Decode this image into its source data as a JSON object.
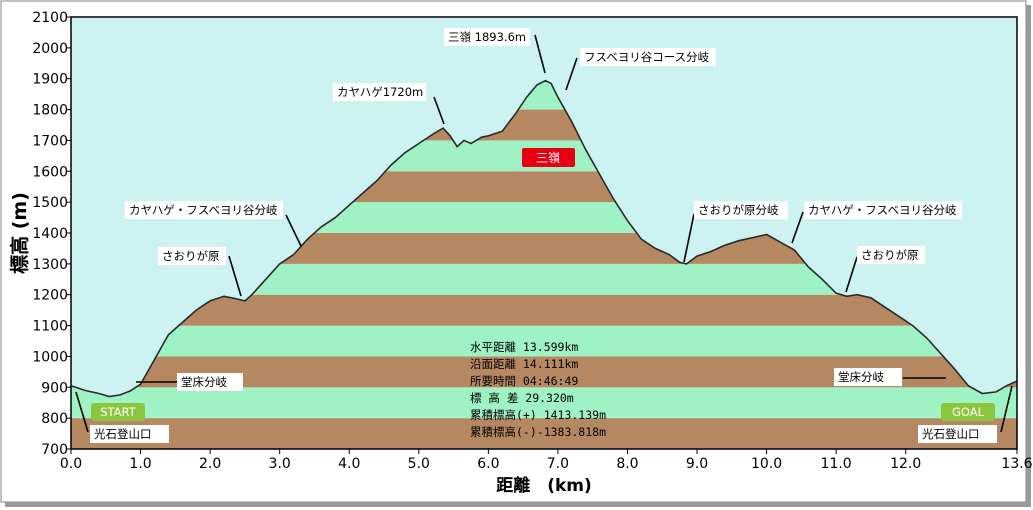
{
  "colors": {
    "background": "#ffffff",
    "plot_background": "#ccf2f2",
    "band_light": "#9ef2c4",
    "band_dark": "#b68862",
    "summit_label_fill": "#e60012",
    "start_goal_fill": "#8cc63f"
  },
  "chart_data": {
    "type": "area",
    "title": "",
    "xlabel": "距離　(km)",
    "ylabel": "標高 (m)",
    "xlim": [
      0.0,
      13.6
    ],
    "ylim": [
      700,
      2100
    ],
    "xticks": [
      "0.0",
      "1.0",
      "2.0",
      "3.0",
      "4.0",
      "5.0",
      "6.0",
      "7.0",
      "8.0",
      "9.0",
      "10.0",
      "11.0",
      "12.0",
      "13.6"
    ],
    "yticks": [
      "700",
      "800",
      "900",
      "1000",
      "1100",
      "1200",
      "1300",
      "1400",
      "1500",
      "1600",
      "1700",
      "1800",
      "1900",
      "2000",
      "2100"
    ],
    "grid": false,
    "legend": "none",
    "profile": {
      "x": [
        0.0,
        0.2,
        0.4,
        0.55,
        0.7,
        0.85,
        1.0,
        1.2,
        1.4,
        1.6,
        1.8,
        2.0,
        2.2,
        2.35,
        2.5,
        2.6,
        2.8,
        3.0,
        3.2,
        3.4,
        3.6,
        3.8,
        4.0,
        4.2,
        4.4,
        4.6,
        4.8,
        5.0,
        5.2,
        5.35,
        5.45,
        5.55,
        5.65,
        5.75,
        5.9,
        6.0,
        6.2,
        6.4,
        6.55,
        6.7,
        6.82,
        6.9,
        7.0,
        7.2,
        7.4,
        7.6,
        7.8,
        8.0,
        8.2,
        8.4,
        8.6,
        8.75,
        8.85,
        9.0,
        9.2,
        9.4,
        9.6,
        9.8,
        10.0,
        10.2,
        10.4,
        10.6,
        10.8,
        11.0,
        11.15,
        11.3,
        11.5,
        11.7,
        11.9,
        12.1,
        12.3,
        12.5,
        12.7,
        12.9,
        13.1,
        13.3,
        13.45,
        13.6
      ],
      "y": [
        905,
        890,
        880,
        870,
        875,
        888,
        910,
        990,
        1070,
        1110,
        1150,
        1180,
        1195,
        1188,
        1180,
        1200,
        1250,
        1300,
        1330,
        1380,
        1420,
        1450,
        1490,
        1530,
        1570,
        1620,
        1660,
        1690,
        1720,
        1740,
        1715,
        1680,
        1700,
        1690,
        1710,
        1715,
        1730,
        1790,
        1840,
        1880,
        1893.6,
        1885,
        1840,
        1760,
        1670,
        1590,
        1510,
        1440,
        1380,
        1350,
        1330,
        1305,
        1300,
        1325,
        1340,
        1360,
        1375,
        1385,
        1395,
        1370,
        1345,
        1290,
        1250,
        1205,
        1195,
        1200,
        1190,
        1160,
        1130,
        1100,
        1060,
        1010,
        960,
        905,
        880,
        885,
        905,
        920
      ]
    },
    "annotations": [
      {
        "text": "三嶺 1893.6m"
      },
      {
        "text": "フスベヨリ谷コース分岐"
      },
      {
        "text": "カヤハゲ1720m"
      },
      {
        "text": "カヤハゲ・フスベヨリ谷分岐"
      },
      {
        "text": "さおりが原"
      },
      {
        "text": "堂床分岐"
      },
      {
        "text": "光石登山口"
      },
      {
        "text": "さおりが原分岐"
      },
      {
        "text": "カヤハゲ・フスベヨリ谷分岐"
      },
      {
        "text": "さおりが原"
      },
      {
        "text": "堂床分岐"
      },
      {
        "text": "光石登山口"
      }
    ],
    "summit_label": "三嶺",
    "start_label": "START",
    "goal_label": "GOAL",
    "stats": [
      "水平距離 13.599km",
      "沿面距離 14.111km",
      "所要時間 04:46:49",
      "標 高 差 29.320m",
      "累積標高(+) 1413.139m",
      "累積標高(-)-1383.818m"
    ]
  }
}
